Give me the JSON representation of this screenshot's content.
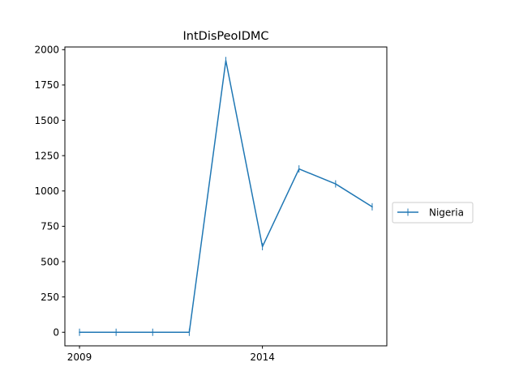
{
  "chart_data": {
    "type": "line",
    "title": "IntDisPeoIDMC",
    "xlabel": "",
    "ylabel": "",
    "x": [
      2009,
      2010,
      2011,
      2012,
      2013,
      2014,
      2015,
      2016,
      2017
    ],
    "series": [
      {
        "name": "Nigeria",
        "values": [
          0,
          0,
          0,
          0,
          1923,
          606,
          1156,
          1050,
          888
        ],
        "color": "#1f77b4",
        "marker": "vertical-tick"
      }
    ],
    "xlim": [
      2008.6,
      2017.4
    ],
    "ylim": [
      -96,
      2019
    ],
    "x_ticks": [
      {
        "value": 2009,
        "label": "2009"
      },
      {
        "value": 2014,
        "label": "2014"
      }
    ],
    "y_ticks": [
      {
        "value": 0,
        "label": "0"
      },
      {
        "value": 250,
        "label": "250"
      },
      {
        "value": 500,
        "label": "500"
      },
      {
        "value": 750,
        "label": "750"
      },
      {
        "value": 1000,
        "label": "1000"
      },
      {
        "value": 1250,
        "label": "1250"
      },
      {
        "value": 1500,
        "label": "1500"
      },
      {
        "value": 1750,
        "label": "1750"
      },
      {
        "value": 2000,
        "label": "2000"
      }
    ],
    "grid": false,
    "legend_placement": "right-outside"
  }
}
